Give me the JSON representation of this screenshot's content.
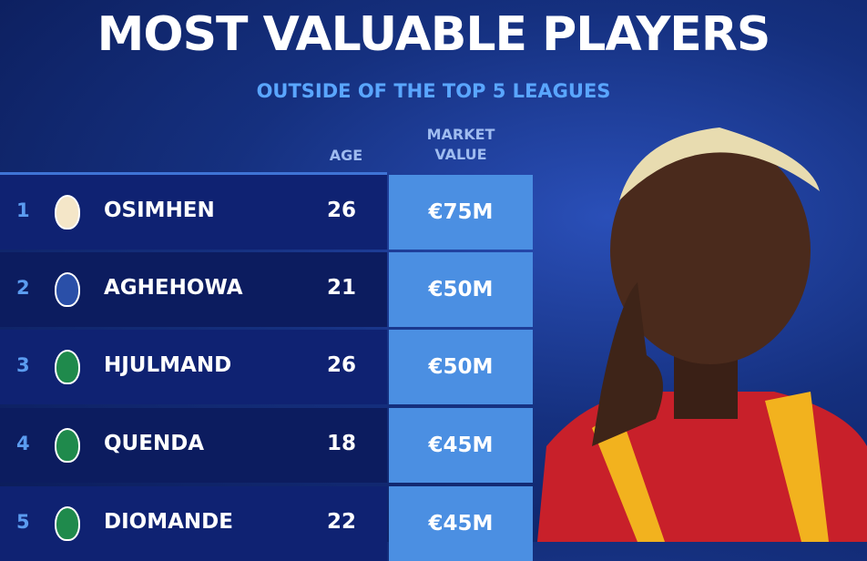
{
  "title": "MOST VALUABLE PLAYERS",
  "subtitle": "OUTSIDE OF THE TOP 5 LEAGUES",
  "headers": {
    "age": "AGE",
    "market_value_line1": "MARKET",
    "market_value_line2": "VALUE"
  },
  "rows": [
    {
      "rank": "1",
      "club_crest": "galatasaray-crest",
      "name": "OSIMHEN",
      "age": "26",
      "value": "€75M"
    },
    {
      "rank": "2",
      "club_crest": "porto-crest",
      "name": "AGHEHOWA",
      "age": "21",
      "value": "€50M"
    },
    {
      "rank": "3",
      "club_crest": "sporting-crest",
      "name": "HJULMAND",
      "age": "26",
      "value": "€50M"
    },
    {
      "rank": "4",
      "club_crest": "sporting-crest",
      "name": "QUENDA",
      "age": "18",
      "value": "€45M"
    },
    {
      "rank": "5",
      "club_crest": "sporting-crest",
      "name": "DIOMANDE",
      "age": "22",
      "value": "€45M"
    }
  ],
  "colors": {
    "value_cell": "#4b8fe2",
    "row_bg": "#0f2272",
    "subtitle": "#5aa6ff"
  }
}
